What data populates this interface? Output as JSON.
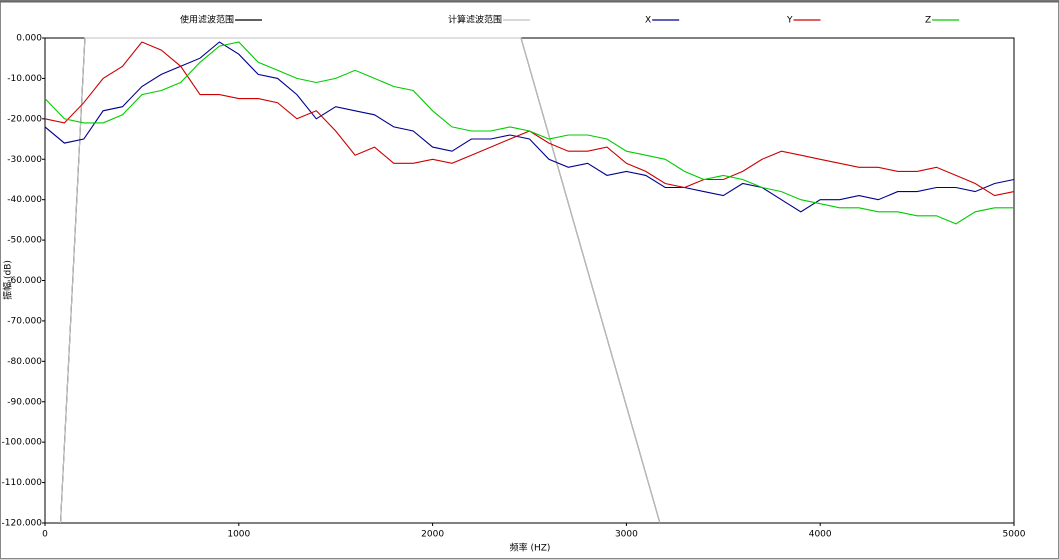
{
  "chart_data": {
    "type": "line",
    "xlabel": "频率 (HZ)",
    "ylabel": "振幅 (dB)",
    "xlim": [
      0,
      5000
    ],
    "xticks": [
      0,
      1000,
      2000,
      3000,
      4000,
      5000
    ],
    "ylim": [
      -120,
      0
    ],
    "yticks": [
      {
        "value": 0,
        "label": "0.000"
      },
      {
        "value": -10,
        "label": "-10.000"
      },
      {
        "value": -20,
        "label": "-20.000"
      },
      {
        "value": -30,
        "label": "-30.000"
      },
      {
        "value": -40,
        "label": "-40.000"
      },
      {
        "value": -50,
        "label": "-50.000"
      },
      {
        "value": -60,
        "label": "-60.000"
      },
      {
        "value": -70,
        "label": "-70.000"
      },
      {
        "value": -80,
        "label": "-80.000"
      },
      {
        "value": -90,
        "label": "-90.000"
      },
      {
        "value": -100,
        "label": "-100.000"
      },
      {
        "value": -110,
        "label": "-110.000"
      },
      {
        "value": -120,
        "label": "-120.000"
      }
    ],
    "x": [
      0,
      100,
      200,
      300,
      400,
      500,
      600,
      700,
      800,
      900,
      1000,
      1100,
      1200,
      1300,
      1400,
      1500,
      1600,
      1700,
      1800,
      1900,
      2000,
      2100,
      2200,
      2300,
      2400,
      2500,
      2600,
      2700,
      2800,
      2900,
      3000,
      3100,
      3200,
      3300,
      3400,
      3500,
      3600,
      3700,
      3800,
      3900,
      4000,
      4100,
      4200,
      4300,
      4400,
      4500,
      4600,
      4700,
      4800,
      4900,
      5000
    ],
    "series": [
      {
        "name": "使用滤波范围",
        "color": "#000000",
        "x": [
          80,
          206,
          2456,
          3173
        ],
        "values": [
          -120,
          0,
          0,
          -120
        ]
      },
      {
        "name": "计算滤波范围",
        "color": "#c0c0c0",
        "x": [
          80,
          206,
          2456,
          3173
        ],
        "values": [
          -120,
          0,
          0,
          -120
        ]
      },
      {
        "name": "X",
        "color": "#00008b",
        "values": [
          -22,
          -26,
          -25,
          -18,
          -17,
          -12,
          -9,
          -7,
          -5,
          -1,
          -4,
          -9,
          -10,
          -14,
          -20,
          -17,
          -18,
          -19,
          -22,
          -23,
          -27,
          -28,
          -25,
          -25,
          -24,
          -25,
          -30,
          -32,
          -31,
          -34,
          -33,
          -34,
          -37,
          -37,
          -38,
          -39,
          -36,
          -37,
          -40,
          -43,
          -40,
          -40,
          -39,
          -40,
          -38,
          -38,
          -37,
          -37,
          -38,
          -36,
          -35
        ]
      },
      {
        "name": "Y",
        "color": "#cc0000",
        "values": [
          -20,
          -21,
          -16,
          -10,
          -7,
          -1,
          -3,
          -7,
          -14,
          -14,
          -15,
          -15,
          -16,
          -20,
          -18,
          -23,
          -29,
          -27,
          -31,
          -31,
          -30,
          -31,
          -29,
          -27,
          -25,
          -23,
          -26,
          -28,
          -28,
          -27,
          -31,
          -33,
          -36,
          -37,
          -35,
          -35,
          -33,
          -30,
          -28,
          -29,
          -30,
          -31,
          -32,
          -32,
          -33,
          -33,
          -32,
          -34,
          -36,
          -39,
          -38
        ]
      },
      {
        "name": "Z",
        "color": "#00cc00",
        "values": [
          -15,
          -20,
          -21,
          -21,
          -19,
          -14,
          -13,
          -11,
          -6,
          -2,
          -1,
          -6,
          -8,
          -10,
          -11,
          -10,
          -8,
          -10,
          -12,
          -13,
          -18,
          -22,
          -23,
          -23,
          -22,
          -23,
          -25,
          -24,
          -24,
          -25,
          -28,
          -29,
          -30,
          -33,
          -35,
          -34,
          -35,
          -37,
          -38,
          -40,
          -41,
          -42,
          -42,
          -43,
          -43,
          -44,
          -44,
          -46,
          -43,
          -42,
          -42
        ]
      }
    ]
  }
}
